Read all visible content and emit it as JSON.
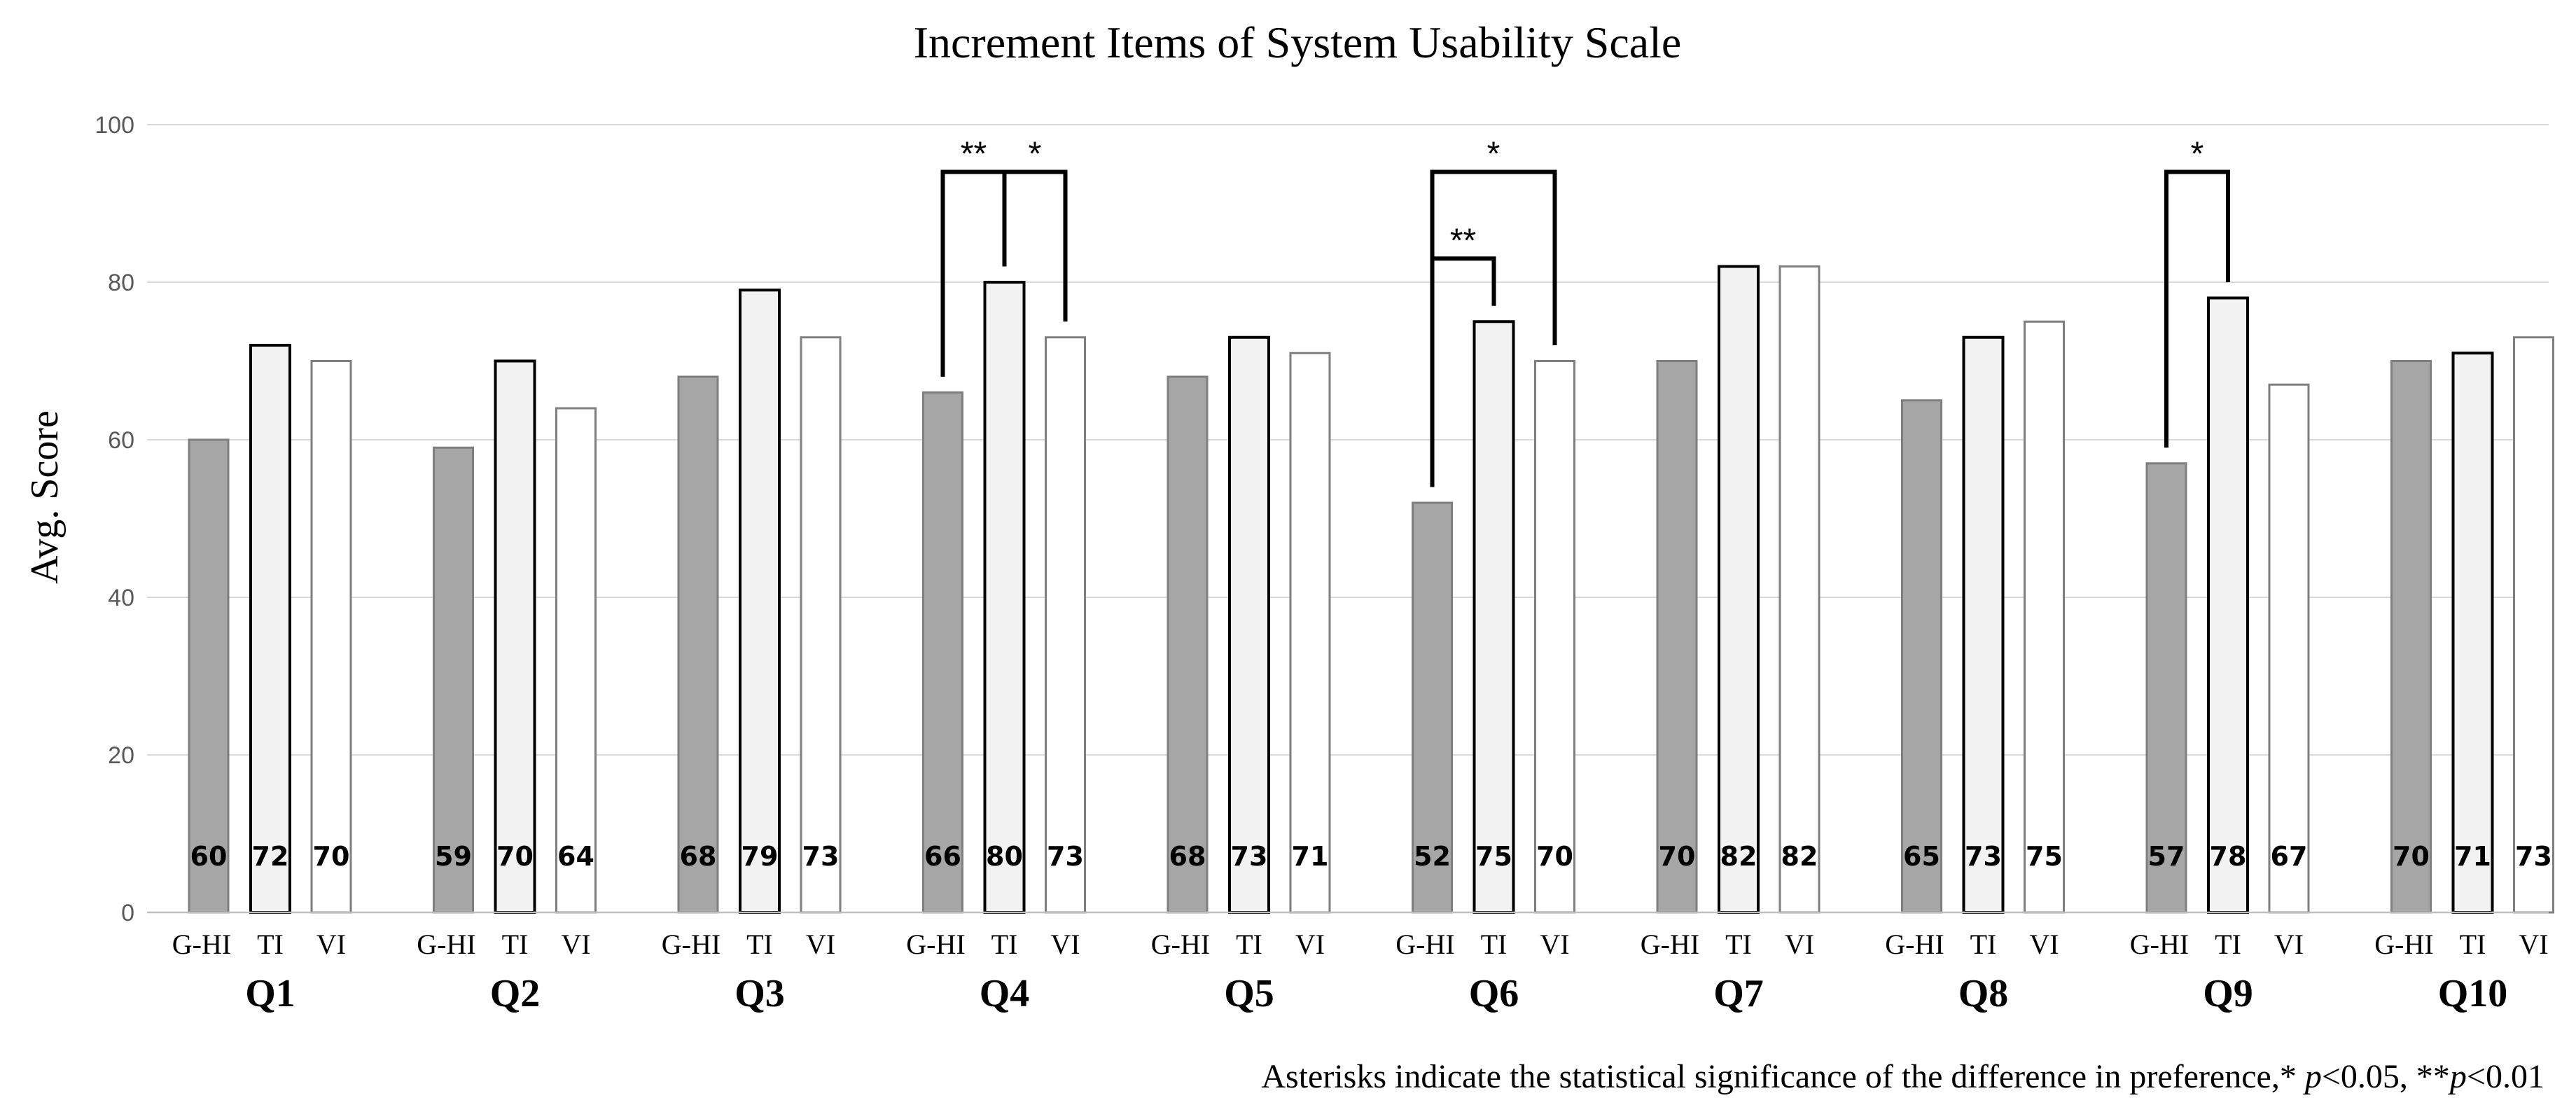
{
  "chart_data": {
    "type": "bar",
    "title": "Increment Items of System Usability Scale",
    "ylabel": "Avg. Score",
    "xlabel": "",
    "ylim": [
      0,
      100
    ],
    "yticks": [
      0,
      20,
      40,
      60,
      80,
      100
    ],
    "grid": true,
    "groups": [
      "Q1",
      "Q2",
      "Q3",
      "Q4",
      "Q5",
      "Q6",
      "Q7",
      "Q8",
      "Q9",
      "Q10"
    ],
    "series": [
      {
        "name": "G-HI",
        "fill": "#a6a6a6",
        "stroke": "#7f7f7f",
        "values": [
          60,
          59,
          68,
          66,
          68,
          52,
          70,
          65,
          57,
          70
        ]
      },
      {
        "name": "TI",
        "fill": "#f2f2f2",
        "stroke": "#000000",
        "values": [
          72,
          70,
          79,
          80,
          73,
          75,
          82,
          73,
          78,
          71
        ]
      },
      {
        "name": "VI",
        "fill": "#ffffff",
        "stroke": "#7f7f7f",
        "values": [
          70,
          64,
          73,
          73,
          71,
          70,
          82,
          75,
          67,
          73
        ]
      }
    ],
    "significance": [
      {
        "group": "Q4",
        "from": "G-HI",
        "to": "TI",
        "label": "**",
        "level": 94
      },
      {
        "group": "Q4",
        "from": "TI",
        "to": "VI",
        "label": "*",
        "level": 94
      },
      {
        "group": "Q6",
        "from": "G-HI",
        "to": "TI",
        "label": "**",
        "level": 83
      },
      {
        "group": "Q6",
        "from": "G-HI",
        "to": "VI",
        "label": "*",
        "level": 94
      },
      {
        "group": "Q9",
        "from": "G-HI",
        "to": "TI",
        "label": "*",
        "level": 94
      }
    ],
    "footnote": {
      "prefix": "Asterisks indicate the statistical significance of the difference in preference,* ",
      "p1": "p",
      "mid": "<0.05, **",
      "p2": "p",
      "suffix": "<0.01"
    }
  }
}
